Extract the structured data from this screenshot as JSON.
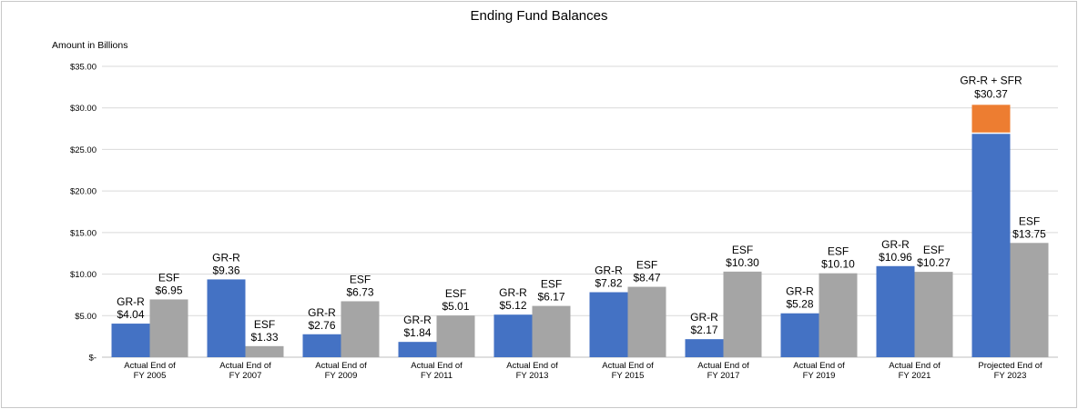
{
  "chart_data": {
    "type": "bar",
    "title": "Ending Fund Balances",
    "ylabel": "Amount in Billions",
    "xlabel": "",
    "ylim": [
      0,
      35
    ],
    "yticks": [
      "$-",
      "$5.00",
      "$10.00",
      "$15.00",
      "$20.00",
      "$25.00",
      "$30.00",
      "$35.00"
    ],
    "grid": true,
    "categories": [
      [
        "Actual End of",
        "FY 2005"
      ],
      [
        "Actual End of",
        "FY 2007"
      ],
      [
        "Actual End of",
        "FY 2009"
      ],
      [
        "Actual End of",
        "FY 2011"
      ],
      [
        "Actual End of",
        "FY 2013"
      ],
      [
        "Actual End of",
        "FY 2015"
      ],
      [
        "Actual End of",
        "FY 2017"
      ],
      [
        "Actual End of",
        "FY 2019"
      ],
      [
        "Actual End of",
        "FY 2021"
      ],
      [
        "Projected End of",
        "FY 2023"
      ]
    ],
    "series": [
      {
        "name": "GR-R",
        "color": "#4472c4",
        "values": [
          4.04,
          9.36,
          2.76,
          1.84,
          5.12,
          7.82,
          2.17,
          5.28,
          10.96,
          26.9
        ],
        "labels": [
          "$4.04",
          "$9.36",
          "$2.76",
          "$1.84",
          "$5.12",
          "$7.82",
          "$2.17",
          "$5.28",
          "$10.96",
          ""
        ]
      },
      {
        "name": "SFR",
        "color": "#ed7d31",
        "stack_on": "GR-R",
        "values": [
          null,
          null,
          null,
          null,
          null,
          null,
          null,
          null,
          null,
          3.47
        ],
        "labels": [
          "",
          "",
          "",
          "",
          "",
          "",
          "",
          "",
          "",
          ""
        ]
      },
      {
        "name": "ESF",
        "color": "#a5a5a5",
        "values": [
          6.95,
          1.33,
          6.73,
          5.01,
          6.17,
          8.47,
          10.3,
          10.1,
          10.27,
          13.75
        ],
        "labels": [
          "$6.95",
          "$1.33",
          "$6.73",
          "$5.01",
          "$6.17",
          "$8.47",
          "$10.30",
          "$10.10",
          "$10.27",
          "$13.75"
        ]
      }
    ],
    "stack_label": {
      "category_index": 9,
      "name": "GR-R + SFR",
      "value": "$30.37"
    }
  }
}
